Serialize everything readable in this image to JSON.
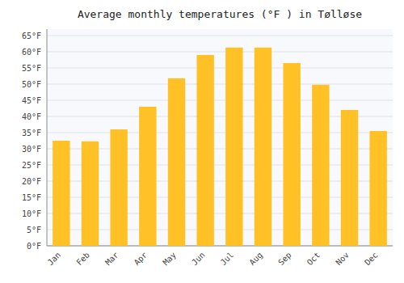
{
  "chart_data": {
    "type": "bar",
    "title": "Average monthly temperatures (°F ) in Tølløse",
    "categories": [
      "Jan",
      "Feb",
      "Mar",
      "Apr",
      "May",
      "Jun",
      "Jul",
      "Aug",
      "Sep",
      "Oct",
      "Nov",
      "Dec"
    ],
    "values": [
      32.5,
      32.3,
      36.0,
      43.0,
      51.8,
      59.0,
      61.3,
      61.3,
      56.5,
      49.8,
      42.0,
      35.5
    ],
    "color": "#FFC125",
    "ylim": [
      0,
      67
    ],
    "yticks": [
      {
        "value": 0,
        "label": "0°F"
      },
      {
        "value": 5,
        "label": "5°F"
      },
      {
        "value": 10,
        "label": "10°F"
      },
      {
        "value": 15,
        "label": "15°F"
      },
      {
        "value": 20,
        "label": "20°F"
      },
      {
        "value": 25,
        "label": "25°F"
      },
      {
        "value": 30,
        "label": "30°F"
      },
      {
        "value": 35,
        "label": "35°F"
      },
      {
        "value": 40,
        "label": "40°F"
      },
      {
        "value": 45,
        "label": "45°F"
      },
      {
        "value": 50,
        "label": "50°F"
      },
      {
        "value": 55,
        "label": "55°F"
      },
      {
        "value": 60,
        "label": "60°F"
      },
      {
        "value": 65,
        "label": "65°F"
      }
    ],
    "grid": true
  }
}
